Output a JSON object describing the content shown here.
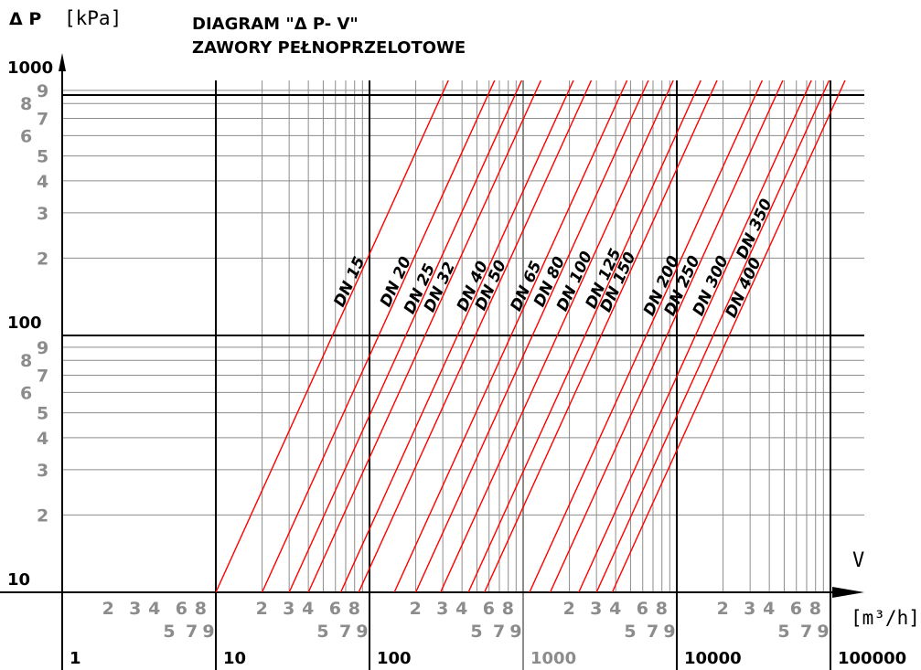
{
  "header": {
    "ylabel_symbol": "Δ P",
    "ylabel_unit": "[kPa]",
    "title_line1": "DIAGRAM \"Δ P- V\"",
    "title_line2": "ZAWORY PEŁNOPRZELOTOWE",
    "xlabel_symbol": "V",
    "xlabel_unit": "[m³/h]"
  },
  "chart_data": {
    "type": "line",
    "scale": "log-log",
    "title": "DIAGRAM \"Δ P- V\" ZAWORY PEŁNOPRZELOTOWE",
    "xlabel": "V [m³/h]",
    "ylabel": "Δ P [kPa]",
    "xlim": [
      1,
      160000
    ],
    "ylim": [
      10,
      1200
    ],
    "grid": true,
    "y_major_labels": [
      "1000",
      "100",
      "10"
    ],
    "y_major_values": [
      1000,
      100,
      10
    ],
    "y_minor_digits": [
      {
        "label": "9",
        "mult": 9
      },
      {
        "label": "8",
        "mult": 8
      },
      {
        "label": "7",
        "mult": 7
      },
      {
        "label": "6",
        "mult": 6
      },
      {
        "label": "5",
        "mult": 5
      },
      {
        "label": "4",
        "mult": 4
      },
      {
        "label": "3",
        "mult": 3
      },
      {
        "label": "2",
        "mult": 2
      }
    ],
    "x_major_labels": [
      "1",
      "10",
      "100",
      "1000",
      "10000",
      "100000"
    ],
    "x_major_values": [
      1,
      10,
      100,
      1000,
      10000,
      100000
    ],
    "x_minor_row1": [
      {
        "label": "2",
        "mult": 2
      },
      {
        "label": "3",
        "mult": 3
      },
      {
        "label": "4",
        "mult": 4
      },
      {
        "label": "6",
        "mult": 6
      },
      {
        "label": "8",
        "mult": 8
      }
    ],
    "x_minor_row2": [
      {
        "label": "5",
        "mult": 5
      },
      {
        "label": "7",
        "mult": 7
      },
      {
        "label": "9",
        "mult": 9
      }
    ],
    "series_color": "#ff0000",
    "series": [
      {
        "name": "DN 15",
        "points": [
          [
            10,
            10
          ],
          [
            330,
            1000
          ]
        ]
      },
      {
        "name": "DN 20",
        "points": [
          [
            20,
            10
          ],
          [
            660,
            1000
          ]
        ]
      },
      {
        "name": "DN 25",
        "points": [
          [
            30,
            10
          ],
          [
            990,
            1000
          ]
        ]
      },
      {
        "name": "DN 32",
        "points": [
          [
            40,
            10
          ],
          [
            1320,
            1000
          ]
        ]
      },
      {
        "name": "DN 40",
        "points": [
          [
            65,
            10
          ],
          [
            2150,
            1000
          ]
        ]
      },
      {
        "name": "DN 50",
        "points": [
          [
            85,
            10
          ],
          [
            2810,
            1000
          ]
        ]
      },
      {
        "name": "DN 65",
        "points": [
          [
            145,
            10
          ],
          [
            4800,
            1000
          ]
        ]
      },
      {
        "name": "DN 80",
        "points": [
          [
            200,
            10
          ],
          [
            6610,
            1000
          ]
        ]
      },
      {
        "name": "DN 100",
        "points": [
          [
            290,
            10
          ],
          [
            9600,
            1000
          ]
        ]
      },
      {
        "name": "DN 125",
        "points": [
          [
            440,
            10
          ],
          [
            14500,
            1000
          ]
        ]
      },
      {
        "name": "DN 150",
        "points": [
          [
            560,
            10
          ],
          [
            18500,
            1000
          ]
        ]
      },
      {
        "name": "DN 200",
        "points": [
          [
            1100,
            10
          ],
          [
            36400,
            1000
          ]
        ]
      },
      {
        "name": "DN 250",
        "points": [
          [
            1500,
            10
          ],
          [
            49600,
            1000
          ]
        ]
      },
      {
        "name": "DN 300",
        "points": [
          [
            2300,
            10
          ],
          [
            76000,
            1000
          ]
        ]
      },
      {
        "name": "DN 350",
        "points": [
          [
            3000,
            10
          ],
          [
            99200,
            1000
          ]
        ]
      },
      {
        "name": "DN 400",
        "points": [
          [
            3800,
            10
          ],
          [
            126000,
            1000
          ]
        ]
      }
    ],
    "series_label_at_dp": [
      130,
      130,
      122,
      124,
      125,
      126,
      125,
      130,
      125,
      128,
      124,
      120,
      120,
      120,
      200,
      118
    ]
  },
  "colors": {
    "major_grid": "#000000",
    "minor_grid": "#8c8c8c",
    "grey_text": "#8c8c8c",
    "curve": "#ff0000"
  }
}
